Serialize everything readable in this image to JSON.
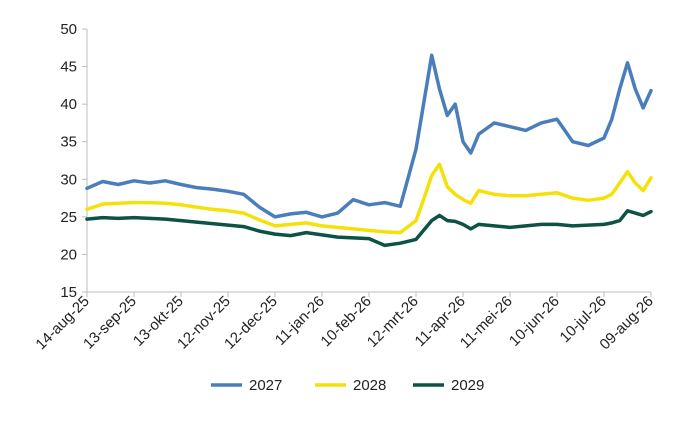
{
  "chart_data": {
    "type": "line",
    "title": "",
    "xlabel": "",
    "ylabel": "",
    "x_ticks": [
      "14-aug-25",
      "13-sep-25",
      "13-okt-25",
      "12-nov-25",
      "12-dec-25",
      "11-jan-26",
      "10-feb-26",
      "12-mrt-26",
      "11-apr-26",
      "11-mei-26",
      "10-jun-26",
      "10-jul-26",
      "09-aug-26"
    ],
    "ylim": [
      15,
      50
    ],
    "y_ticks": [
      "15",
      "20",
      "25",
      "30",
      "35",
      "40",
      "45",
      "50"
    ],
    "grid": false,
    "legend_position": "bottom",
    "x": [
      "14-aug-25",
      "24-aug-25",
      "03-sep-25",
      "13-sep-25",
      "23-sep-25",
      "03-okt-25",
      "13-okt-25",
      "23-okt-25",
      "02-nov-25",
      "12-nov-25",
      "22-nov-25",
      "02-dec-25",
      "12-dec-25",
      "22-dec-25",
      "01-jan-26",
      "11-jan-26",
      "21-jan-26",
      "31-jan-26",
      "10-feb-26",
      "20-feb-26",
      "02-mrt-26",
      "12-mrt-26",
      "16-mrt-26",
      "22-mrt-26",
      "27-mrt-26",
      "01-apr-26",
      "06-apr-26",
      "11-apr-26",
      "16-apr-26",
      "21-apr-26",
      "01-mei-26",
      "11-mei-26",
      "21-mei-26",
      "31-mei-26",
      "10-jun-26",
      "20-jun-26",
      "30-jun-26",
      "10-jul-26",
      "15-jul-26",
      "20-jul-26",
      "25-jul-26",
      "30-jul-26",
      "04-aug-26",
      "09-aug-26"
    ],
    "series": [
      {
        "name": "2027",
        "color": "#4a7ebb",
        "values": [
          28.8,
          29.7,
          29.3,
          29.8,
          29.5,
          29.8,
          29.3,
          28.9,
          28.7,
          28.4,
          28.0,
          26.3,
          25.0,
          25.4,
          25.6,
          25.0,
          25.5,
          27.3,
          26.6,
          26.9,
          26.4,
          34.0,
          39.0,
          46.5,
          42.0,
          38.5,
          40.0,
          35.0,
          33.5,
          36.0,
          37.5,
          37.0,
          36.5,
          37.5,
          38.0,
          35.0,
          34.5,
          35.5,
          38.0,
          42.0,
          45.5,
          42.0,
          39.5,
          41.8
        ]
      },
      {
        "name": "2028",
        "color": "#f5e10a",
        "values": [
          26.0,
          26.7,
          26.8,
          26.9,
          26.9,
          26.8,
          26.6,
          26.3,
          26.0,
          25.8,
          25.5,
          24.6,
          23.8,
          24.0,
          24.2,
          23.8,
          23.6,
          23.4,
          23.2,
          23.0,
          22.9,
          24.5,
          26.8,
          30.5,
          32.0,
          29.0,
          28.0,
          27.3,
          26.8,
          28.5,
          28.0,
          27.8,
          27.8,
          28.0,
          28.2,
          27.5,
          27.2,
          27.5,
          28.0,
          29.5,
          31.0,
          29.5,
          28.5,
          30.2
        ]
      },
      {
        "name": "2029",
        "color": "#0e5246",
        "values": [
          24.7,
          24.9,
          24.8,
          24.9,
          24.8,
          24.7,
          24.5,
          24.3,
          24.1,
          23.9,
          23.7,
          23.1,
          22.7,
          22.5,
          22.9,
          22.6,
          22.3,
          22.2,
          22.1,
          21.2,
          21.5,
          22.0,
          23.0,
          24.5,
          25.2,
          24.5,
          24.4,
          24.0,
          23.4,
          24.0,
          23.8,
          23.6,
          23.8,
          24.0,
          24.0,
          23.8,
          23.9,
          24.0,
          24.2,
          24.5,
          25.8,
          25.5,
          25.2,
          25.7
        ]
      }
    ]
  }
}
